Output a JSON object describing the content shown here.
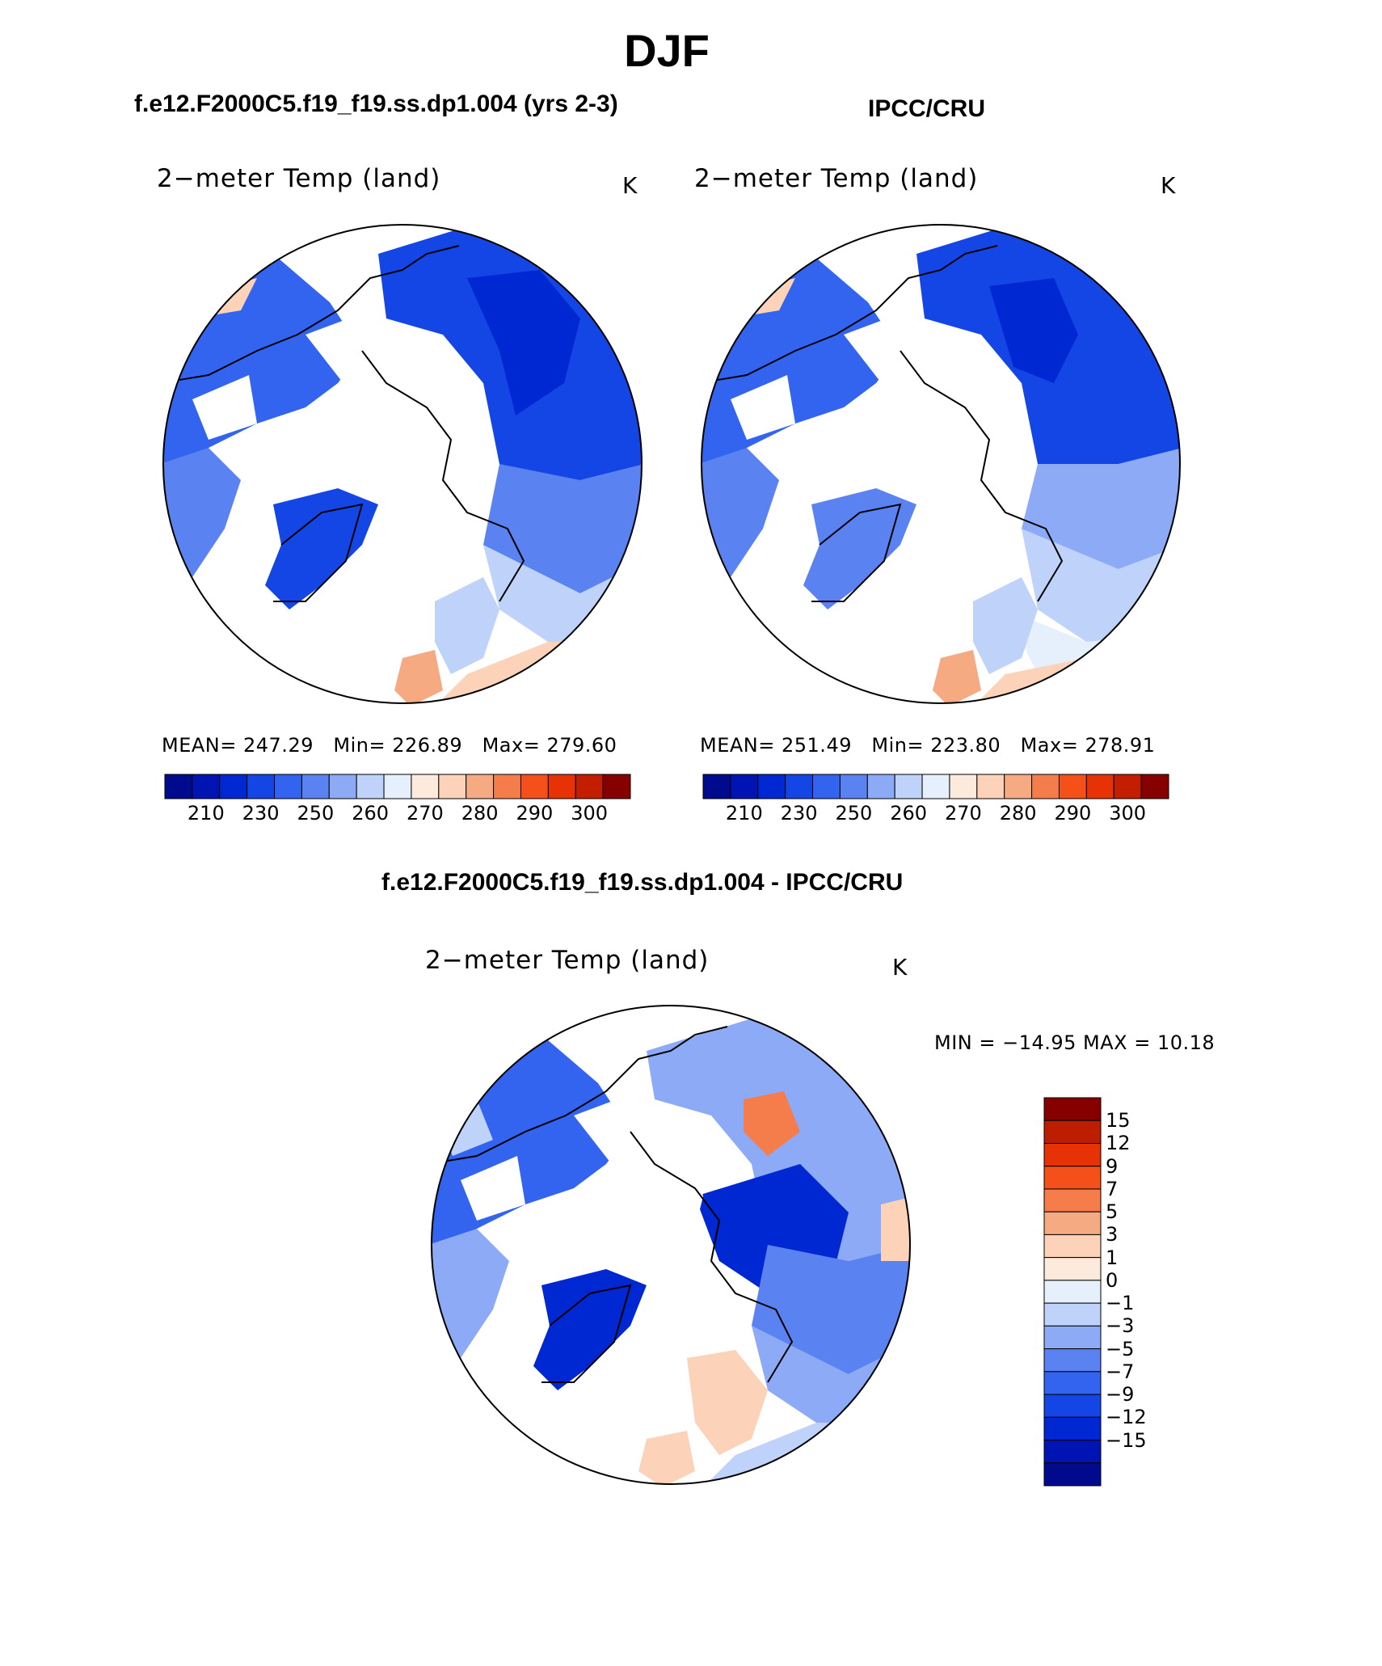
{
  "figure": {
    "season_title": "DJF",
    "case_title": "f.e12.F2000C5.f19_f19.ss.dp1.004 (yrs 2-3)",
    "obs_title": "IPCC/CRU",
    "diff_title": "f.e12.F2000C5.f19_f19.ss.dp1.004 - IPCC/CRU"
  },
  "panels": [
    {
      "variable_label": "2−meter Temp (land)",
      "units": "K",
      "stats": {
        "mean_label": "MEAN=",
        "mean": "247.29",
        "min_label": "Min=",
        "min": "226.89",
        "max_label": "Max=",
        "max": "279.60"
      }
    },
    {
      "variable_label": "2−meter Temp (land)",
      "units": "K",
      "stats": {
        "mean_label": "MEAN=",
        "mean": "251.49",
        "min_label": "Min=",
        "min": "223.80",
        "max_label": "Max=",
        "max": "278.91"
      }
    },
    {
      "variable_label": "2−meter Temp (land)",
      "units": "K",
      "stats_text": "MIN = −14.95 MAX =   10.18"
    }
  ],
  "colorbars": {
    "absolute": {
      "colors": [
        "#000a8c",
        "#0014b4",
        "#0028d2",
        "#1446e6",
        "#3264f0",
        "#5a82f0",
        "#8caaf5",
        "#bed2fa",
        "#e6f0fc",
        "#fcebdc",
        "#fcd2b9",
        "#f5aa82",
        "#f57d4b",
        "#f55019",
        "#e63205",
        "#c31e00",
        "#870000"
      ],
      "tick_labels": [
        "210",
        "230",
        "250",
        "260",
        "270",
        "280",
        "290",
        "300"
      ]
    },
    "difference": {
      "colors_top_to_bottom": [
        "#870000",
        "#be1e00",
        "#e63205",
        "#f55019",
        "#f57d4b",
        "#f5aa82",
        "#fcd2b9",
        "#fcebdc",
        "#e6f0fc",
        "#bed2fa",
        "#8caaf5",
        "#5a82f0",
        "#3264f0",
        "#1446e6",
        "#0028d2",
        "#0014b4",
        "#000a8c"
      ],
      "tick_labels": [
        "15",
        "12",
        "9",
        "7",
        "5",
        "3",
        "1",
        "0",
        "−1",
        "−3",
        "−5",
        "−7",
        "−9",
        "−12",
        "−15"
      ]
    }
  }
}
